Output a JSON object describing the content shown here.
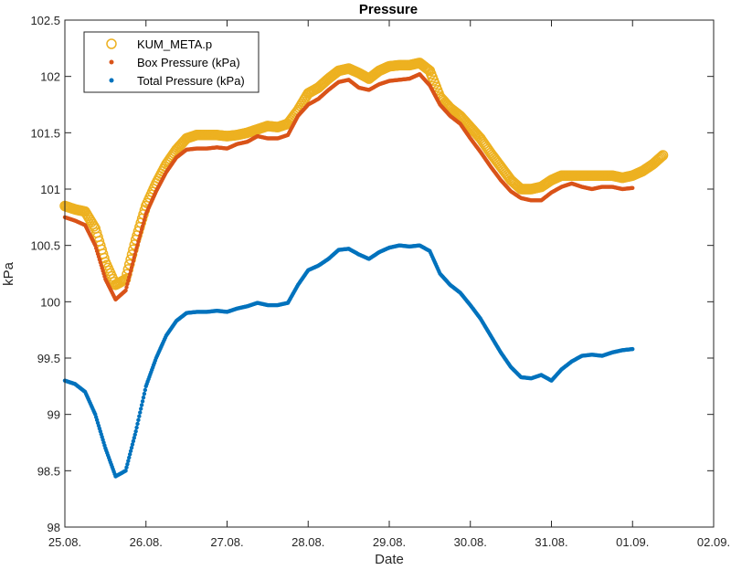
{
  "chart_data": {
    "type": "scatter",
    "title": "Pressure",
    "xlabel": "Date",
    "ylabel": "kPa",
    "xlim": [
      "2020-08-25",
      "2020-09-02"
    ],
    "ylim": [
      98,
      102.5
    ],
    "x_tick_labels": [
      "25.08.",
      "26.08.",
      "27.08.",
      "28.08.",
      "29.08.",
      "30.08.",
      "31.08.",
      "01.09.",
      "02.09."
    ],
    "y_tick_labels": [
      "98",
      "98.5",
      "99",
      "99.5",
      "100",
      "100.5",
      "101",
      "101.5",
      "102",
      "102.5"
    ],
    "legend_position": "top-left",
    "series": [
      {
        "name": "KUM_META.p",
        "color": "#EDB120",
        "marker": "circle-open",
        "points": [
          [
            "2020-08-25 00:00",
            100.85
          ],
          [
            "2020-08-25 03:00",
            100.82
          ],
          [
            "2020-08-25 06:00",
            100.8
          ],
          [
            "2020-08-25 09:00",
            100.65
          ],
          [
            "2020-08-25 12:00",
            100.35
          ],
          [
            "2020-08-25 15:00",
            100.15
          ],
          [
            "2020-08-25 18:00",
            100.2
          ],
          [
            "2020-08-25 21:00",
            100.55
          ],
          [
            "2020-08-26 00:00",
            100.85
          ],
          [
            "2020-08-26 03:00",
            101.05
          ],
          [
            "2020-08-26 06:00",
            101.22
          ],
          [
            "2020-08-26 09:00",
            101.35
          ],
          [
            "2020-08-26 12:00",
            101.45
          ],
          [
            "2020-08-26 15:00",
            101.48
          ],
          [
            "2020-08-26 18:00",
            101.48
          ],
          [
            "2020-08-26 21:00",
            101.48
          ],
          [
            "2020-08-27 00:00",
            101.47
          ],
          [
            "2020-08-27 03:00",
            101.48
          ],
          [
            "2020-08-27 06:00",
            101.5
          ],
          [
            "2020-08-27 09:00",
            101.53
          ],
          [
            "2020-08-27 12:00",
            101.56
          ],
          [
            "2020-08-27 15:00",
            101.55
          ],
          [
            "2020-08-27 18:00",
            101.58
          ],
          [
            "2020-08-27 21:00",
            101.7
          ],
          [
            "2020-08-28 00:00",
            101.85
          ],
          [
            "2020-08-28 03:00",
            101.9
          ],
          [
            "2020-08-28 06:00",
            101.98
          ],
          [
            "2020-08-28 09:00",
            102.05
          ],
          [
            "2020-08-28 12:00",
            102.07
          ],
          [
            "2020-08-28 15:00",
            102.03
          ],
          [
            "2020-08-28 18:00",
            101.98
          ],
          [
            "2020-08-28 21:00",
            102.05
          ],
          [
            "2020-08-29 00:00",
            102.09
          ],
          [
            "2020-08-29 03:00",
            102.1
          ],
          [
            "2020-08-29 06:00",
            102.1
          ],
          [
            "2020-08-29 09:00",
            102.12
          ],
          [
            "2020-08-29 12:00",
            102.05
          ],
          [
            "2020-08-29 15:00",
            101.82
          ],
          [
            "2020-08-29 18:00",
            101.72
          ],
          [
            "2020-08-29 21:00",
            101.65
          ],
          [
            "2020-08-30 00:00",
            101.55
          ],
          [
            "2020-08-30 03:00",
            101.45
          ],
          [
            "2020-08-30 06:00",
            101.32
          ],
          [
            "2020-08-30 09:00",
            101.2
          ],
          [
            "2020-08-30 12:00",
            101.08
          ],
          [
            "2020-08-30 15:00",
            101.0
          ],
          [
            "2020-08-30 18:00",
            101.0
          ],
          [
            "2020-08-30 21:00",
            101.02
          ],
          [
            "2020-08-31 00:00",
            101.08
          ],
          [
            "2020-08-31 03:00",
            101.12
          ],
          [
            "2020-08-31 06:00",
            101.12
          ],
          [
            "2020-08-31 09:00",
            101.12
          ],
          [
            "2020-08-31 12:00",
            101.12
          ],
          [
            "2020-08-31 15:00",
            101.12
          ],
          [
            "2020-08-31 18:00",
            101.12
          ],
          [
            "2020-08-31 21:00",
            101.1
          ],
          [
            "2020-09-01 00:00",
            101.12
          ],
          [
            "2020-09-01 03:00",
            101.16
          ],
          [
            "2020-09-01 06:00",
            101.22
          ],
          [
            "2020-09-01 09:00",
            101.3
          ]
        ]
      },
      {
        "name": "Box Pressure (kPa)",
        "color": "#D95319",
        "marker": "dot",
        "points": [
          [
            "2020-08-25 00:00",
            100.75
          ],
          [
            "2020-08-25 03:00",
            100.72
          ],
          [
            "2020-08-25 06:00",
            100.68
          ],
          [
            "2020-08-25 09:00",
            100.5
          ],
          [
            "2020-08-25 12:00",
            100.2
          ],
          [
            "2020-08-25 15:00",
            100.02
          ],
          [
            "2020-08-25 18:00",
            100.1
          ],
          [
            "2020-08-25 21:00",
            100.45
          ],
          [
            "2020-08-26 00:00",
            100.78
          ],
          [
            "2020-08-26 03:00",
            100.98
          ],
          [
            "2020-08-26 06:00",
            101.15
          ],
          [
            "2020-08-26 09:00",
            101.28
          ],
          [
            "2020-08-26 12:00",
            101.35
          ],
          [
            "2020-08-26 15:00",
            101.36
          ],
          [
            "2020-08-26 18:00",
            101.36
          ],
          [
            "2020-08-26 21:00",
            101.37
          ],
          [
            "2020-08-27 00:00",
            101.36
          ],
          [
            "2020-08-27 03:00",
            101.4
          ],
          [
            "2020-08-27 06:00",
            101.42
          ],
          [
            "2020-08-27 09:00",
            101.47
          ],
          [
            "2020-08-27 12:00",
            101.45
          ],
          [
            "2020-08-27 15:00",
            101.45
          ],
          [
            "2020-08-27 18:00",
            101.48
          ],
          [
            "2020-08-27 21:00",
            101.65
          ],
          [
            "2020-08-28 00:00",
            101.75
          ],
          [
            "2020-08-28 03:00",
            101.8
          ],
          [
            "2020-08-28 06:00",
            101.88
          ],
          [
            "2020-08-28 09:00",
            101.95
          ],
          [
            "2020-08-28 12:00",
            101.97
          ],
          [
            "2020-08-28 15:00",
            101.9
          ],
          [
            "2020-08-28 18:00",
            101.88
          ],
          [
            "2020-08-28 21:00",
            101.93
          ],
          [
            "2020-08-29 00:00",
            101.96
          ],
          [
            "2020-08-29 03:00",
            101.97
          ],
          [
            "2020-08-29 06:00",
            101.98
          ],
          [
            "2020-08-29 09:00",
            102.02
          ],
          [
            "2020-08-29 12:00",
            101.92
          ],
          [
            "2020-08-29 15:00",
            101.75
          ],
          [
            "2020-08-29 18:00",
            101.65
          ],
          [
            "2020-08-29 21:00",
            101.58
          ],
          [
            "2020-08-30 00:00",
            101.45
          ],
          [
            "2020-08-30 03:00",
            101.33
          ],
          [
            "2020-08-30 06:00",
            101.2
          ],
          [
            "2020-08-30 09:00",
            101.08
          ],
          [
            "2020-08-30 12:00",
            100.98
          ],
          [
            "2020-08-30 15:00",
            100.92
          ],
          [
            "2020-08-30 18:00",
            100.9
          ],
          [
            "2020-08-30 21:00",
            100.9
          ],
          [
            "2020-08-31 00:00",
            100.97
          ],
          [
            "2020-08-31 03:00",
            101.02
          ],
          [
            "2020-08-31 06:00",
            101.05
          ],
          [
            "2020-08-31 09:00",
            101.02
          ],
          [
            "2020-08-31 12:00",
            101.0
          ],
          [
            "2020-08-31 15:00",
            101.02
          ],
          [
            "2020-08-31 18:00",
            101.02
          ],
          [
            "2020-08-31 21:00",
            101.0
          ],
          [
            "2020-09-01 00:00",
            101.01
          ]
        ]
      },
      {
        "name": "Total Pressure (kPa)",
        "color": "#0072BD",
        "marker": "dot",
        "points": [
          [
            "2020-08-25 00:00",
            99.3
          ],
          [
            "2020-08-25 03:00",
            99.27
          ],
          [
            "2020-08-25 06:00",
            99.2
          ],
          [
            "2020-08-25 09:00",
            99.0
          ],
          [
            "2020-08-25 12:00",
            98.7
          ],
          [
            "2020-08-25 15:00",
            98.45
          ],
          [
            "2020-08-25 18:00",
            98.5
          ],
          [
            "2020-08-25 21:00",
            98.85
          ],
          [
            "2020-08-26 00:00",
            99.25
          ],
          [
            "2020-08-26 03:00",
            99.5
          ],
          [
            "2020-08-26 06:00",
            99.7
          ],
          [
            "2020-08-26 09:00",
            99.83
          ],
          [
            "2020-08-26 12:00",
            99.9
          ],
          [
            "2020-08-26 15:00",
            99.91
          ],
          [
            "2020-08-26 18:00",
            99.91
          ],
          [
            "2020-08-26 21:00",
            99.92
          ],
          [
            "2020-08-27 00:00",
            99.91
          ],
          [
            "2020-08-27 03:00",
            99.94
          ],
          [
            "2020-08-27 06:00",
            99.96
          ],
          [
            "2020-08-27 09:00",
            99.99
          ],
          [
            "2020-08-27 12:00",
            99.97
          ],
          [
            "2020-08-27 15:00",
            99.97
          ],
          [
            "2020-08-27 18:00",
            99.99
          ],
          [
            "2020-08-27 21:00",
            100.15
          ],
          [
            "2020-08-28 00:00",
            100.28
          ],
          [
            "2020-08-28 03:00",
            100.32
          ],
          [
            "2020-08-28 06:00",
            100.38
          ],
          [
            "2020-08-28 09:00",
            100.46
          ],
          [
            "2020-08-28 12:00",
            100.47
          ],
          [
            "2020-08-28 15:00",
            100.42
          ],
          [
            "2020-08-28 18:00",
            100.38
          ],
          [
            "2020-08-28 21:00",
            100.44
          ],
          [
            "2020-08-29 00:00",
            100.48
          ],
          [
            "2020-08-29 03:00",
            100.5
          ],
          [
            "2020-08-29 06:00",
            100.49
          ],
          [
            "2020-08-29 09:00",
            100.5
          ],
          [
            "2020-08-29 12:00",
            100.45
          ],
          [
            "2020-08-29 15:00",
            100.25
          ],
          [
            "2020-08-29 18:00",
            100.15
          ],
          [
            "2020-08-29 21:00",
            100.08
          ],
          [
            "2020-08-30 00:00",
            99.97
          ],
          [
            "2020-08-30 03:00",
            99.85
          ],
          [
            "2020-08-30 06:00",
            99.7
          ],
          [
            "2020-08-30 09:00",
            99.55
          ],
          [
            "2020-08-30 12:00",
            99.42
          ],
          [
            "2020-08-30 15:00",
            99.33
          ],
          [
            "2020-08-30 18:00",
            99.32
          ],
          [
            "2020-08-30 21:00",
            99.35
          ],
          [
            "2020-08-31 00:00",
            99.3
          ],
          [
            "2020-08-31 03:00",
            99.4
          ],
          [
            "2020-08-31 06:00",
            99.47
          ],
          [
            "2020-08-31 09:00",
            99.52
          ],
          [
            "2020-08-31 12:00",
            99.53
          ],
          [
            "2020-08-31 15:00",
            99.52
          ],
          [
            "2020-08-31 18:00",
            99.55
          ],
          [
            "2020-08-31 21:00",
            99.57
          ],
          [
            "2020-09-01 00:00",
            99.58
          ]
        ]
      }
    ]
  }
}
